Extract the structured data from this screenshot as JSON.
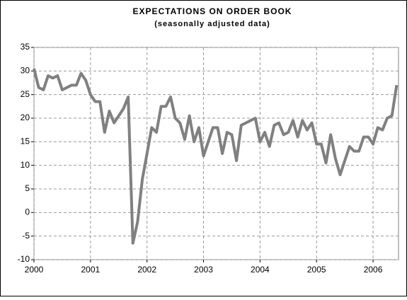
{
  "chart_data": {
    "type": "line",
    "title": "EXPECTATIONS ON ORDER BOOK",
    "subtitle": "(seasonally adjusted data)",
    "x": [
      2000,
      2000.083,
      2000.167,
      2000.25,
      2000.333,
      2000.417,
      2000.5,
      2000.583,
      2000.667,
      2000.75,
      2000.833,
      2000.917,
      2001,
      2001.083,
      2001.167,
      2001.25,
      2001.333,
      2001.417,
      2001.5,
      2001.583,
      2001.667,
      2001.75,
      2001.833,
      2001.917,
      2002,
      2002.083,
      2002.167,
      2002.25,
      2002.333,
      2002.417,
      2002.5,
      2002.583,
      2002.667,
      2002.75,
      2002.833,
      2002.917,
      2003,
      2003.083,
      2003.167,
      2003.25,
      2003.333,
      2003.417,
      2003.5,
      2003.583,
      2003.667,
      2003.75,
      2003.833,
      2003.917,
      2004,
      2004.083,
      2004.167,
      2004.25,
      2004.333,
      2004.417,
      2004.5,
      2004.583,
      2004.667,
      2004.75,
      2004.833,
      2004.917,
      2005,
      2005.083,
      2005.167,
      2005.25,
      2005.333,
      2005.417,
      2005.5,
      2005.583,
      2005.667,
      2005.75,
      2005.833,
      2005.917,
      2006,
      2006.083,
      2006.167,
      2006.25,
      2006.333,
      2006.417
    ],
    "series": [
      {
        "color": "#808080",
        "values": [
          30.5,
          26.5,
          26,
          29,
          28.5,
          29,
          26,
          26.5,
          27,
          27,
          29.5,
          28,
          25,
          23.5,
          23.5,
          17,
          21.5,
          19,
          20.5,
          22,
          24.5,
          -6.5,
          -2,
          7,
          12.5,
          18,
          17,
          22.5,
          22.5,
          24.5,
          20,
          19,
          15.5,
          20.5,
          15,
          18,
          12,
          15,
          18,
          18,
          12.5,
          17,
          16.5,
          11,
          18.5,
          19,
          19.5,
          20,
          15,
          17,
          14,
          18.5,
          19,
          16.5,
          17,
          19.5,
          16,
          19.5,
          17.5,
          19,
          14.5,
          14.5,
          10.5,
          16.5,
          11.5,
          8,
          11,
          14,
          13,
          13,
          16,
          16,
          14.5,
          18,
          17.5,
          20,
          20.5,
          27
        ]
      }
    ],
    "xlim": [
      2000,
      2006.45
    ],
    "xticks": [
      2000,
      2001,
      2002,
      2003,
      2004,
      2005,
      2006
    ],
    "ylim": [
      -10,
      35
    ],
    "yticks": [
      -10,
      -5,
      0,
      5,
      10,
      15,
      20,
      25,
      30,
      35
    ],
    "grid": true
  }
}
